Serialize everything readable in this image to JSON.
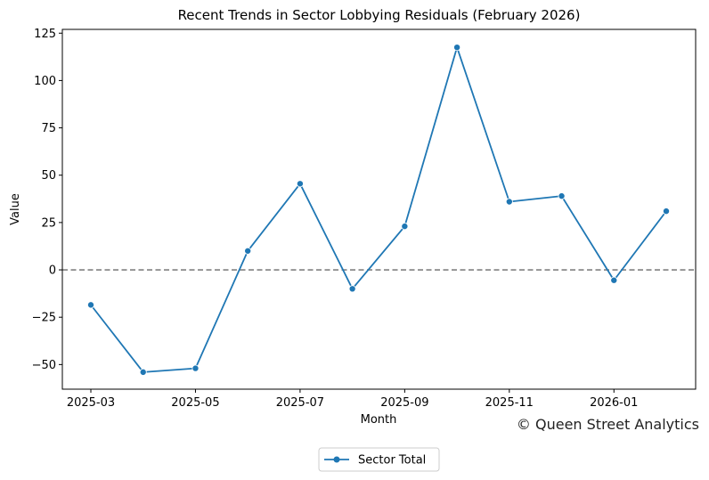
{
  "chart_data": {
    "type": "line",
    "title": "Recent Trends in Sector Lobbying Residuals (February 2026)",
    "xlabel": "Month",
    "ylabel": "Value",
    "x": [
      "2025-03",
      "2025-04",
      "2025-05",
      "2025-06",
      "2025-07",
      "2025-08",
      "2025-09",
      "2025-10",
      "2025-11",
      "2025-12",
      "2026-01",
      "2026-02"
    ],
    "x_ticks": [
      "2025-03",
      "2025-05",
      "2025-07",
      "2025-09",
      "2025-11",
      "2026-01"
    ],
    "series": [
      {
        "name": "Sector Total",
        "values": [
          -18.5,
          -54,
          -52,
          10,
          45.5,
          -10,
          23,
          117.5,
          36,
          39,
          -5.5,
          31
        ],
        "color": "#1f77b4",
        "marker": "circle"
      }
    ],
    "ylim": [
      -63,
      127
    ],
    "y_ticks": [
      -50,
      -25,
      0,
      25,
      50,
      75,
      100,
      125
    ],
    "reference_line": {
      "y": 0,
      "style": "dashed",
      "color": "#808080"
    },
    "grid": false,
    "legend_position": "bottom-center",
    "annotation": "© Queen Street Analytics"
  }
}
